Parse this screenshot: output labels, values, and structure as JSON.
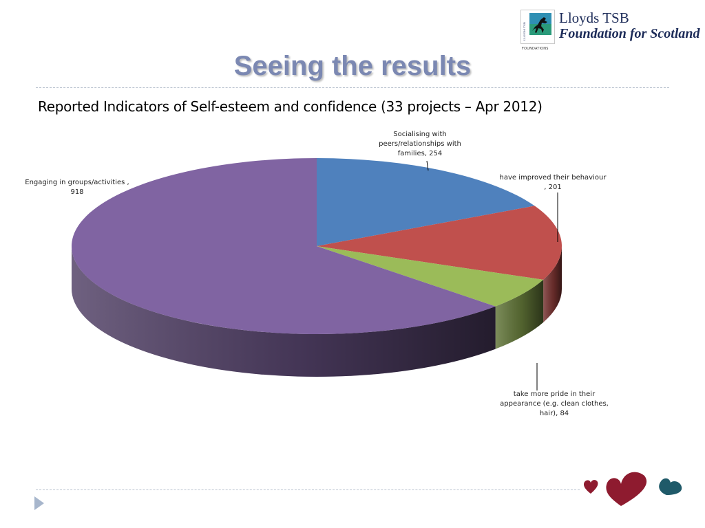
{
  "logo": {
    "line1": "Lloyds TSB",
    "line2": "Foundation for Scotland",
    "vertical_text": "LLOYDS TSB",
    "sub_text": "FOUNDATIONS",
    "icon": "black-horse-icon"
  },
  "slide": {
    "title": "Seeing the results"
  },
  "chart_data": {
    "type": "pie",
    "title": "Reported Indicators of Self-esteem and confidence (33 projects – Apr 2012)",
    "style": "3d-pie",
    "categories": [
      "Socialising with peers/relationships with families",
      "have improved their behaviour",
      "take more pride in their appearance (e.g. clean clothes, hair)",
      "Engaging in groups/activities"
    ],
    "values": [
      254,
      201,
      84,
      918
    ],
    "colors": [
      "#4f81bd",
      "#c0504d",
      "#9bbb59",
      "#8064a2"
    ],
    "data_labels": [
      [
        "Socialising with",
        "peers/relationships with",
        "families, 254"
      ],
      [
        "have improved their behaviour",
        ", 201"
      ],
      [
        "take more pride in their",
        "appearance (e.g. clean clothes,",
        "hair), 84"
      ],
      [
        "Engaging in groups/activities ,",
        "918"
      ]
    ]
  },
  "decor": {
    "heart_colors": [
      "#8e1b2f",
      "#8e1b2f",
      "#1f5a69"
    ],
    "nav_icon": "next-slide-arrow-icon"
  }
}
